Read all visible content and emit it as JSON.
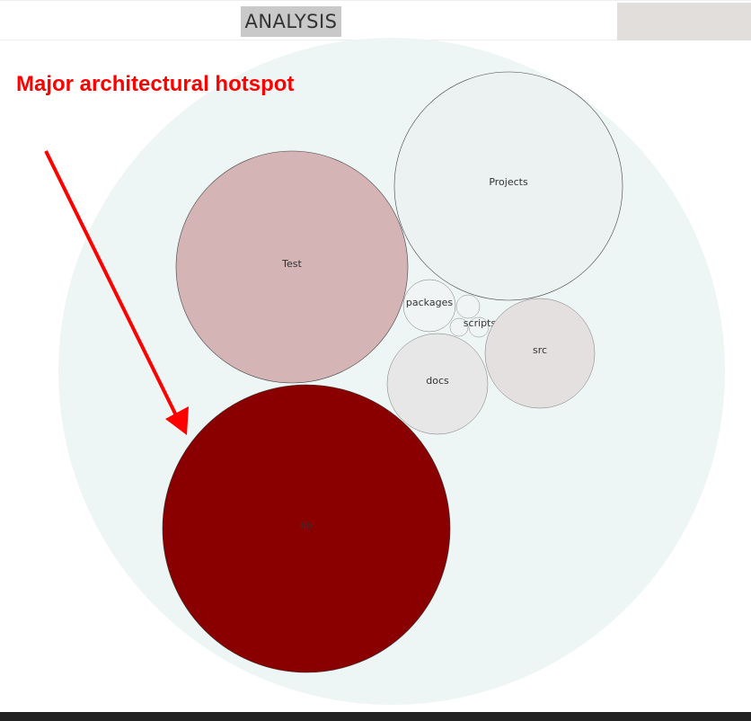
{
  "header": {
    "tab_label": "ANALYSIS"
  },
  "annotation": {
    "text": "Major architectural hotspot",
    "color": "#ff0000"
  },
  "bubbles": {
    "root_color": "#eef5f5",
    "items": [
      {
        "name": "Projects",
        "label": "Projects",
        "color": "#ecf1f1"
      },
      {
        "name": "Test",
        "label": "Test",
        "color": "#d4b4b5"
      },
      {
        "name": "packages",
        "label": "packages",
        "color": "#f1f4f4"
      },
      {
        "name": "scripts-a",
        "label": "",
        "color": "#f1f4f4"
      },
      {
        "name": "scripts-b",
        "label": "",
        "color": "#f1f4f4"
      },
      {
        "name": "scripts-c",
        "label": "",
        "color": "#f1f4f4"
      },
      {
        "name": "scripts",
        "label": "scripts",
        "color": "none"
      },
      {
        "name": "src",
        "label": "src",
        "color": "#e5e0e0"
      },
      {
        "name": "docs",
        "label": "docs",
        "color": "#e8e7e7"
      },
      {
        "name": "lib",
        "label": "lib",
        "color": "#8a0000"
      }
    ]
  }
}
